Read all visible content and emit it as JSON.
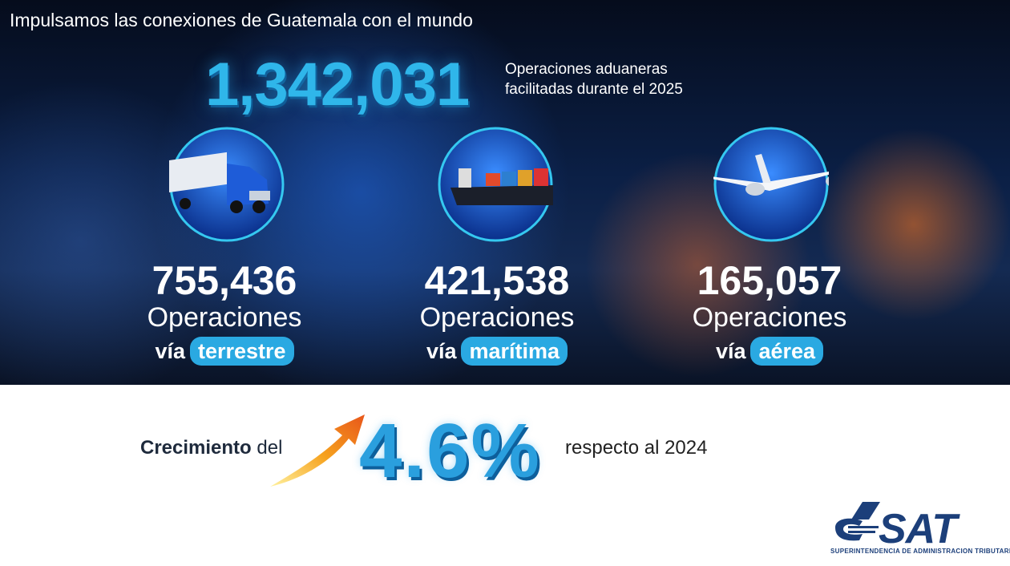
{
  "header": {
    "title": "Impulsamos las conexiones de Guatemala con el mundo"
  },
  "total": {
    "value": "1,342,031",
    "description": [
      "Operaciones aduaneras",
      "facilitadas durante el 2025"
    ]
  },
  "modes": [
    {
      "value": "755,436",
      "label": "Operaciones",
      "prefix": "vía",
      "mode": "terrestre"
    },
    {
      "value": "421,538",
      "label": "Operaciones",
      "prefix": "vía",
      "mode": "marítima"
    },
    {
      "value": "165,057",
      "label": "Operaciones",
      "prefix": "vía",
      "mode": "aérea"
    }
  ],
  "growth": {
    "lead_bold": "Crecimiento",
    "lead": "del",
    "value": "4.6%",
    "tail": "respecto al 2024"
  },
  "logo": {
    "name": "SAT",
    "subtitle": "SUPERINTENDENCIA DE ADMINISTRACION TRIBUTARIA"
  }
}
